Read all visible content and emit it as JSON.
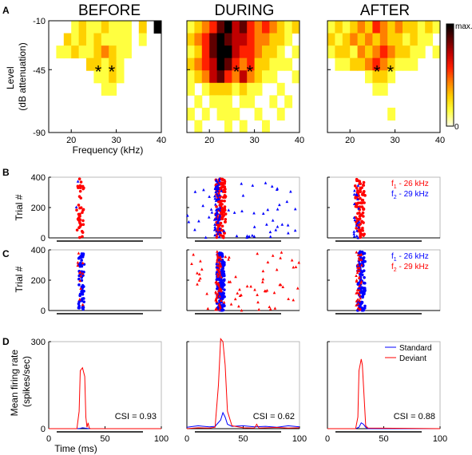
{
  "conditions": [
    "BEFORE",
    "DURING",
    "AFTER"
  ],
  "panel_letters": [
    "A",
    "B",
    "C",
    "D"
  ],
  "colorbar": {
    "max_label": "max.",
    "min_label": "0",
    "colors": [
      "#ffffe0",
      "#ffff40",
      "#ffd000",
      "#ff8000",
      "#ff2000",
      "#c00000",
      "#600000",
      "#000000"
    ]
  },
  "colors": {
    "f1": "#ff0000",
    "f2": "#0000ff",
    "deviant": "#ff0000",
    "standard": "#0000ff",
    "stim_bar": "#000000"
  },
  "chart_data": [
    {
      "panel": "A",
      "type": "heatmap",
      "xlabel": "Frequency (kHz)",
      "ylabel": "Level (dB attenuation)",
      "xticks": [
        20,
        30,
        40
      ],
      "yticks": [
        -10,
        -45,
        -90
      ],
      "xlim": [
        15,
        40
      ],
      "ylim": [
        -90,
        -10
      ],
      "star_label": "*",
      "stars_khz": [
        26,
        29
      ],
      "stars_level": -45,
      "rows": 9,
      "cols": 15,
      "maps": [
        {
          "condition": "BEFORE",
          "grid": [
            [
              0,
              0,
              0,
              1,
              2,
              1,
              1,
              2,
              1,
              1,
              1,
              0,
              2,
              0,
              9
            ],
            [
              0,
              0,
              2,
              1,
              2,
              1,
              2,
              1,
              1,
              1,
              1,
              0,
              1,
              0,
              0
            ],
            [
              0,
              1,
              1,
              2,
              1,
              1,
              2,
              3,
              2,
              1,
              1,
              0,
              0,
              0,
              0
            ],
            [
              0,
              0,
              0,
              0,
              0,
              2,
              2,
              1,
              2,
              1,
              0,
              0,
              0,
              0,
              0
            ],
            [
              0,
              0,
              0,
              0,
              0,
              0,
              1,
              1,
              2,
              1,
              0,
              0,
              0,
              0,
              0
            ],
            [
              0,
              0,
              0,
              0,
              0,
              0,
              0,
              1,
              1,
              0,
              0,
              0,
              0,
              0,
              0
            ],
            [
              0,
              0,
              0,
              0,
              0,
              0,
              0,
              0,
              0,
              0,
              0,
              0,
              0,
              0,
              0
            ],
            [
              0,
              0,
              0,
              0,
              0,
              0,
              0,
              0,
              0,
              0,
              0,
              0,
              0,
              0,
              0
            ],
            [
              0,
              0,
              0,
              0,
              0,
              0,
              0,
              0,
              0,
              0,
              0,
              0,
              0,
              0,
              0
            ]
          ]
        },
        {
          "condition": "DURING",
          "grid": [
            [
              1,
              2,
              3,
              4,
              6,
              7,
              5,
              6,
              4,
              3,
              4,
              3,
              2,
              1,
              2
            ],
            [
              2,
              3,
              4,
              6,
              7,
              6,
              5,
              5,
              4,
              3,
              3,
              2,
              2,
              1,
              0
            ],
            [
              1,
              2,
              4,
              6,
              8,
              7,
              5,
              4,
              4,
              3,
              2,
              2,
              1,
              0,
              1
            ],
            [
              2,
              3,
              4,
              5,
              8,
              6,
              4,
              3,
              4,
              2,
              2,
              1,
              1,
              1,
              0
            ],
            [
              1,
              2,
              3,
              5,
              6,
              4,
              3,
              5,
              3,
              2,
              1,
              1,
              0,
              0,
              1
            ],
            [
              1,
              0,
              1,
              2,
              2,
              2,
              1,
              2,
              1,
              1,
              0,
              0,
              1,
              0,
              0
            ],
            [
              0,
              1,
              0,
              1,
              1,
              1,
              0,
              1,
              1,
              0,
              0,
              1,
              0,
              1,
              0
            ],
            [
              1,
              0,
              1,
              0,
              1,
              1,
              1,
              0,
              0,
              1,
              0,
              0,
              1,
              0,
              0
            ],
            [
              0,
              1,
              0,
              0,
              0,
              1,
              0,
              1,
              0,
              0,
              1,
              0,
              0,
              0,
              0
            ]
          ]
        },
        {
          "condition": "AFTER",
          "grid": [
            [
              1,
              2,
              1,
              2,
              3,
              2,
              4,
              3,
              2,
              3,
              2,
              2,
              1,
              2,
              1
            ],
            [
              2,
              1,
              2,
              3,
              2,
              3,
              2,
              3,
              2,
              2,
              1,
              2,
              1,
              1,
              0
            ],
            [
              1,
              2,
              2,
              1,
              3,
              2,
              3,
              4,
              3,
              2,
              2,
              1,
              1,
              0,
              1
            ],
            [
              0,
              1,
              1,
              2,
              2,
              3,
              4,
              3,
              2,
              1,
              1,
              1,
              0,
              0,
              0
            ],
            [
              0,
              0,
              0,
              0,
              0,
              1,
              2,
              2,
              1,
              0,
              0,
              0,
              0,
              0,
              0
            ],
            [
              0,
              0,
              0,
              0,
              0,
              0,
              1,
              1,
              0,
              0,
              0,
              0,
              0,
              0,
              0
            ],
            [
              0,
              0,
              0,
              0,
              0,
              0,
              0,
              0,
              0,
              0,
              0,
              0,
              0,
              0,
              0
            ],
            [
              0,
              0,
              0,
              0,
              0,
              0,
              0,
              0,
              1,
              0,
              0,
              0,
              0,
              0,
              0
            ],
            [
              0,
              0,
              0,
              0,
              0,
              0,
              0,
              0,
              0,
              0,
              0,
              0,
              0,
              0,
              0
            ]
          ]
        }
      ]
    },
    {
      "panel": "B",
      "type": "scatter",
      "ylabel": "Trial #",
      "yticks": [
        0,
        200,
        400
      ],
      "ylim": [
        0,
        400
      ],
      "xlim": [
        0,
        100
      ],
      "legend": {
        "f1_prefix": "f",
        "f1_sub": "1",
        "f1_text": " - 26 kHz",
        "f2_prefix": "f",
        "f2_sub": "2",
        "f2_text": " - 29 kHz"
      },
      "legend_colors": [
        "#ff0000",
        "#0000ff"
      ],
      "subplots": [
        {
          "condition": "BEFORE",
          "f1_times_ms": [
            26,
            27,
            28,
            29,
            30
          ],
          "f1_count": 40,
          "f2_count": 2,
          "background_f2": false
        },
        {
          "condition": "DURING",
          "f1_times_ms": [
            27,
            29,
            31,
            33
          ],
          "f1_count": 140,
          "f2_count": 110,
          "background_f2": true
        },
        {
          "condition": "AFTER",
          "f1_times_ms": [
            26,
            28,
            30,
            32
          ],
          "f1_count": 90,
          "f2_count": 20,
          "background_f2": false
        }
      ]
    },
    {
      "panel": "C",
      "type": "scatter",
      "ylabel": "Trial #",
      "yticks": [
        0,
        200,
        400
      ],
      "ylim": [
        0,
        400
      ],
      "xlim": [
        0,
        100
      ],
      "legend": {
        "f1_prefix": "f",
        "f1_sub": "1",
        "f1_text": " - 26 kHz",
        "f2_prefix": "f",
        "f2_sub": "2",
        "f2_text": " - 29 kHz"
      },
      "legend_colors": [
        "#0000ff",
        "#ff0000"
      ],
      "subplots": [
        {
          "condition": "BEFORE",
          "f1_times_ms": [
            28,
            30
          ],
          "f1_count": 60,
          "f2_count": 12,
          "background_f2": false
        },
        {
          "condition": "DURING",
          "f1_times_ms": [
            28,
            30,
            32
          ],
          "f1_count": 150,
          "f2_count": 120,
          "background_f2": true
        },
        {
          "condition": "AFTER",
          "f1_times_ms": [
            28,
            30,
            32
          ],
          "f1_count": 120,
          "f2_count": 40,
          "background_f2": false
        }
      ]
    },
    {
      "panel": "D",
      "type": "line",
      "xlabel": "Time (ms)",
      "ylabel": "Mean firing rate (spikes/sec)",
      "xticks": [
        0,
        50,
        100
      ],
      "yticks": [
        0,
        300
      ],
      "xlim": [
        0,
        100
      ],
      "ylim": [
        0,
        300
      ],
      "legend": [
        "Standard",
        "Deviant"
      ],
      "subplots": [
        {
          "condition": "BEFORE",
          "csi_text": "CSI = 0.93",
          "series": [
            {
              "name": "Standard",
              "x": [
                0,
                25,
                28,
                30,
                32,
                34,
                36,
                100
              ],
              "values": [
                0,
                0,
                1,
                3,
                2,
                1,
                0,
                0
              ]
            },
            {
              "name": "Deviant",
              "x": [
                0,
                25,
                27,
                28,
                30,
                32,
                33,
                34,
                35,
                36,
                37,
                100
              ],
              "values": [
                0,
                0,
                60,
                200,
                210,
                180,
                40,
                5,
                20,
                2,
                0,
                0
              ]
            }
          ]
        },
        {
          "condition": "DURING",
          "csi_text": "CSI = 0.62",
          "series": [
            {
              "name": "Standard",
              "x": [
                0,
                10,
                20,
                25,
                30,
                32,
                34,
                36,
                40,
                50,
                60,
                70,
                80,
                90,
                100
              ],
              "values": [
                5,
                10,
                6,
                8,
                30,
                55,
                40,
                15,
                8,
                10,
                6,
                8,
                5,
                10,
                6
              ]
            },
            {
              "name": "Deviant",
              "x": [
                0,
                10,
                20,
                25,
                28,
                30,
                32,
                34,
                36,
                40,
                50,
                60,
                62,
                64,
                80,
                90,
                100
              ],
              "values": [
                0,
                3,
                2,
                5,
                150,
                310,
                300,
                220,
                60,
                10,
                3,
                2,
                15,
                2,
                4,
                2,
                3
              ]
            }
          ]
        },
        {
          "condition": "AFTER",
          "csi_text": "CSI = 0.88",
          "series": [
            {
              "name": "Standard",
              "x": [
                0,
                25,
                28,
                30,
                32,
                34,
                36,
                100
              ],
              "values": [
                0,
                0,
                5,
                20,
                15,
                5,
                0,
                0
              ]
            },
            {
              "name": "Deviant",
              "x": [
                0,
                25,
                27,
                28,
                30,
                31,
                32,
                34,
                36,
                100
              ],
              "values": [
                0,
                0,
                40,
                200,
                240,
                220,
                150,
                10,
                2,
                0
              ]
            }
          ]
        }
      ]
    }
  ]
}
